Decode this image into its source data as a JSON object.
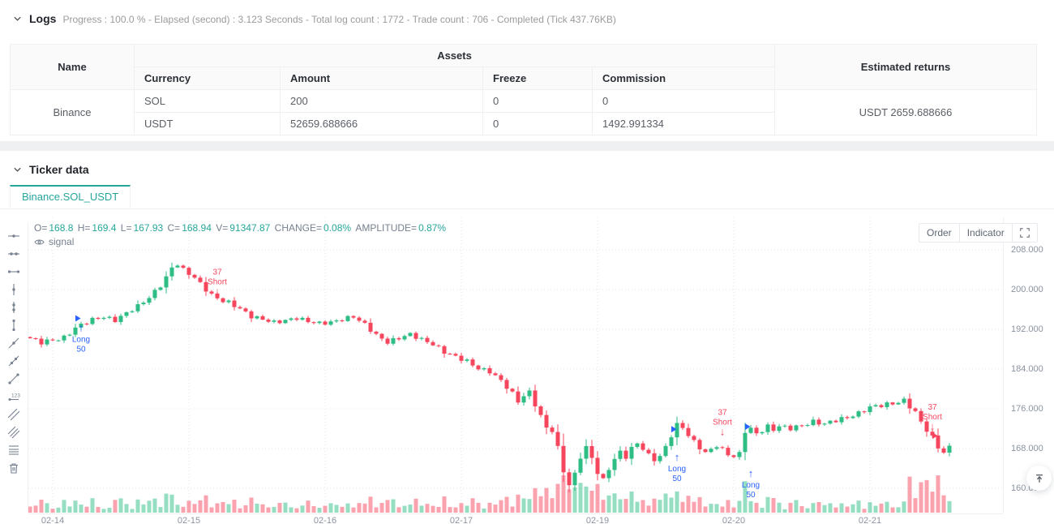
{
  "logs": {
    "title": "Logs",
    "summary": "Progress : 100.0 % - Elapsed (second) : 3.123  Seconds - Total log count : 1772 - Trade count : 706 - Completed (Tick 437.76KB)"
  },
  "table": {
    "headers": {
      "name": "Name",
      "assets": "Assets",
      "currency": "Currency",
      "amount": "Amount",
      "freeze": "Freeze",
      "commission": "Commission",
      "estimated": "Estimated returns"
    },
    "account": "Binance",
    "rows": [
      {
        "currency": "SOL",
        "amount": "200",
        "freeze": "0",
        "commission": "0"
      },
      {
        "currency": "USDT",
        "amount": "52659.688666",
        "freeze": "0",
        "commission": "1492.991334"
      }
    ],
    "estimated_returns": "USDT 2659.688666"
  },
  "ticker": {
    "title": "Ticker data",
    "tab": "Binance.SOL_USDT"
  },
  "toolbar_buttons": {
    "order": "Order",
    "indicator": "Indicator"
  },
  "drawing_tools": [
    "horizontal-straight-line",
    "horizontal-ray-line",
    "horizontal-segment",
    "vertical-straight-line",
    "vertical-ray-line",
    "vertical-segment",
    "straight-line",
    "ray-line",
    "segment",
    "price-line",
    "parallel-straight-line",
    "price-channel-line",
    "fibonacci-line",
    "delete"
  ],
  "chart_data": {
    "type": "candlestick",
    "symbol": "Binance.SOL_USDT",
    "interval": "1h",
    "signal_label": "signal",
    "legend": [
      {
        "label": "O=",
        "value": "168.8"
      },
      {
        "label": "H=",
        "value": "169.4"
      },
      {
        "label": "L=",
        "value": "167.93"
      },
      {
        "label": "C=",
        "value": "168.94"
      },
      {
        "label": "V=",
        "value": "91347.87"
      },
      {
        "label": "CHANGE=",
        "value": "0.08%"
      },
      {
        "label": "AMPLITUDE=",
        "value": "0.87%"
      }
    ],
    "colors": {
      "up": "#2DBD85",
      "down": "#F6465D",
      "long": "#2962FF",
      "short": "#F6465D",
      "grid": "#e3e6eb",
      "axis_text": "#8b93a1",
      "legend_value": "#26a69a"
    },
    "y_axis": {
      "grid": true,
      "ticks": [
        {
          "price": 208,
          "label": "208.000"
        },
        {
          "price": 200,
          "label": "200.000"
        },
        {
          "price": 192,
          "label": "192.000"
        },
        {
          "price": 184,
          "label": "184.000"
        },
        {
          "price": 176,
          "label": "176.000"
        },
        {
          "price": 168,
          "label": "168.000"
        },
        {
          "price": 160,
          "label": "160.000"
        }
      ]
    },
    "x_axis": {
      "grid": true,
      "ticks": [
        {
          "index": 4,
          "label": "02-14"
        },
        {
          "index": 28,
          "label": "02-15"
        },
        {
          "index": 52,
          "label": "02-16"
        },
        {
          "index": 76,
          "label": "02-17"
        },
        {
          "index": 100,
          "label": "02-19"
        },
        {
          "index": 124,
          "label": "02-20"
        },
        {
          "index": 148,
          "label": "02-21"
        }
      ]
    },
    "candle_count": 163,
    "close_anchors": [
      [
        0,
        190.2
      ],
      [
        2,
        189.2
      ],
      [
        4,
        189.8
      ],
      [
        6,
        190.5
      ],
      [
        8,
        192.3
      ],
      [
        9,
        192.8
      ],
      [
        11,
        193.8
      ],
      [
        13,
        194.6
      ],
      [
        15,
        194.0
      ],
      [
        17,
        195.2
      ],
      [
        19,
        196.5
      ],
      [
        21,
        198.5
      ],
      [
        23,
        201.0
      ],
      [
        24,
        202.5
      ],
      [
        25,
        204.3
      ],
      [
        26,
        205.0
      ],
      [
        27,
        203.8
      ],
      [
        29,
        202.5
      ],
      [
        31,
        200.2
      ],
      [
        32,
        199.0
      ],
      [
        33,
        198.2
      ],
      [
        34,
        197.6
      ],
      [
        35,
        197.2
      ],
      [
        37,
        196.2
      ],
      [
        39,
        194.8
      ],
      [
        41,
        194.0
      ],
      [
        43,
        193.2
      ],
      [
        45,
        193.8
      ],
      [
        47,
        194.5
      ],
      [
        49,
        193.6
      ],
      [
        51,
        193.0
      ],
      [
        53,
        193.4
      ],
      [
        55,
        194.2
      ],
      [
        57,
        194.6
      ],
      [
        59,
        192.8
      ],
      [
        61,
        190.8
      ],
      [
        63,
        189.6
      ],
      [
        65,
        190.3
      ],
      [
        67,
        190.8
      ],
      [
        69,
        189.9
      ],
      [
        71,
        189.2
      ],
      [
        73,
        187.5
      ],
      [
        75,
        186.3
      ],
      [
        77,
        185.5
      ],
      [
        79,
        184.3
      ],
      [
        81,
        183.6
      ],
      [
        83,
        181.5
      ],
      [
        85,
        179.0
      ],
      [
        86,
        177.5
      ],
      [
        87,
        178.8
      ],
      [
        88,
        179.5
      ],
      [
        89,
        177.0
      ],
      [
        90,
        174.5
      ],
      [
        91,
        172.0
      ],
      [
        92,
        171.5
      ],
      [
        93,
        168.0
      ],
      [
        94,
        163.5
      ],
      [
        95,
        160.8
      ],
      [
        96,
        163.0
      ],
      [
        97,
        166.5
      ],
      [
        98,
        168.2
      ],
      [
        99,
        166.0
      ],
      [
        100,
        163.0
      ],
      [
        101,
        161.5
      ],
      [
        102,
        164.0
      ],
      [
        103,
        166.0
      ],
      [
        104,
        167.5
      ],
      [
        105,
        166.5
      ],
      [
        106,
        168.0
      ],
      [
        107,
        169.0
      ],
      [
        108,
        167.8
      ],
      [
        109,
        166.5
      ],
      [
        110,
        165.8
      ],
      [
        111,
        166.5
      ],
      [
        112,
        168.5
      ],
      [
        113,
        170.8
      ],
      [
        114,
        172.8
      ],
      [
        115,
        172.2
      ],
      [
        116,
        170.5
      ],
      [
        117,
        169.2
      ],
      [
        118,
        168.2
      ],
      [
        119,
        167.2
      ],
      [
        120,
        168.0
      ],
      [
        121,
        168.8
      ],
      [
        122,
        167.8
      ],
      [
        123,
        166.8
      ],
      [
        124,
        166.2
      ],
      [
        125,
        166.8
      ],
      [
        126,
        171.5
      ],
      [
        127,
        172.0
      ],
      [
        128,
        171.2
      ],
      [
        129,
        171.8
      ],
      [
        130,
        172.5
      ],
      [
        131,
        171.8
      ],
      [
        132,
        172.3
      ],
      [
        134,
        172.0
      ],
      [
        136,
        172.8
      ],
      [
        138,
        173.5
      ],
      [
        140,
        172.8
      ],
      [
        142,
        173.6
      ],
      [
        144,
        174.4
      ],
      [
        146,
        175.2
      ],
      [
        148,
        176.2
      ],
      [
        150,
        176.6
      ],
      [
        152,
        177.2
      ],
      [
        154,
        177.8
      ],
      [
        156,
        175.2
      ],
      [
        157,
        173.2
      ],
      [
        158,
        171.6
      ],
      [
        159,
        170.2
      ],
      [
        160,
        168.4
      ],
      [
        161,
        167.4
      ],
      [
        162,
        168.4
      ]
    ],
    "volume_boosts": [
      {
        "from": 90,
        "to": 101,
        "factor": 1.2
      },
      {
        "from": 155,
        "to": 161,
        "factor": 1.9
      }
    ],
    "trade_markers": [
      {
        "index": 9,
        "side": "long",
        "price": 193.2,
        "lines": [
          "Long",
          "50"
        ]
      },
      {
        "index": 33,
        "side": "short",
        "price": 198.8,
        "lines": [
          "37",
          "Short"
        ]
      },
      {
        "index": 114,
        "side": "long",
        "price": 167.2,
        "lines": [
          "Long",
          "50"
        ]
      },
      {
        "index": 122,
        "side": "short",
        "price": 170.5,
        "lines": [
          "37",
          "Short"
        ]
      },
      {
        "index": 127,
        "side": "long",
        "price": 163.9,
        "lines": [
          "Long",
          "50"
        ]
      },
      {
        "index": 159,
        "side": "short",
        "price": 171.6,
        "lines": [
          "37",
          "Short"
        ]
      }
    ],
    "signal_flags": [
      {
        "index": 8,
        "price": 194.2,
        "color": "#2962FF"
      },
      {
        "index": 113,
        "price": 171.9,
        "color": "#2962FF"
      },
      {
        "index": 126,
        "price": 172.4,
        "color": "#2962FF"
      },
      {
        "index": 159,
        "price": 170.6,
        "color": "#F6465D"
      }
    ]
  }
}
